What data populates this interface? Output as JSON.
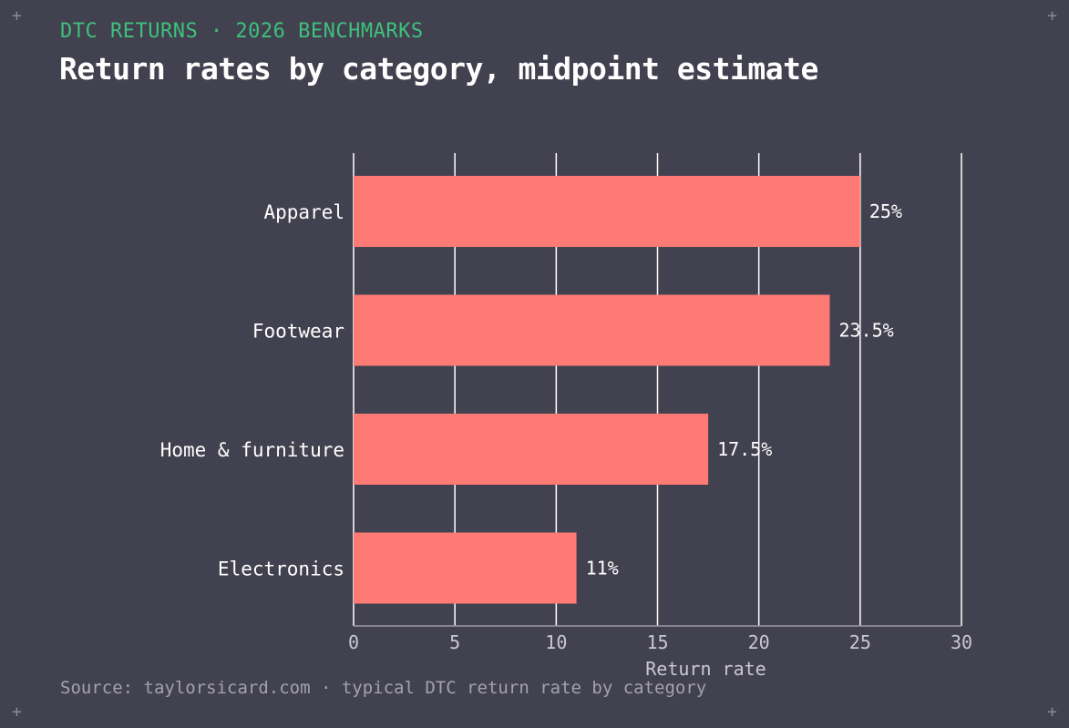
{
  "header": {
    "eyebrow": "DTC RETURNS · 2026 BENCHMARKS",
    "title": "Return rates by category, midpoint estimate"
  },
  "footer": {
    "source": "Source: taylorsicard.com · typical DTC return rate by category"
  },
  "colors": {
    "background": "#42414f",
    "bar": "#fe7a74",
    "accent": "#3ec07c",
    "grid": "#ffffff",
    "text": "#ffffff",
    "muted": "#c9c8d0"
  },
  "chart_data": {
    "type": "bar",
    "orientation": "horizontal",
    "categories": [
      "Apparel",
      "Footwear",
      "Home & furniture",
      "Electronics"
    ],
    "values": [
      25,
      23.5,
      17.5,
      11
    ],
    "value_labels": [
      "25%",
      "23.5%",
      "17.5%",
      "11%"
    ],
    "xlabel": "Return rate",
    "xlim": [
      0,
      30
    ],
    "xticks": [
      0,
      5,
      10,
      15,
      20,
      25,
      30
    ],
    "grid": true
  }
}
